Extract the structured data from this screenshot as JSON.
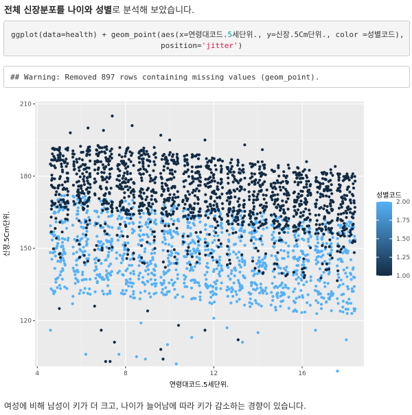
{
  "intro": {
    "prefix": "전체 신장분포를 나이와 성별",
    "suffix": "로 분석해 보았습니다."
  },
  "code": {
    "line1_a": "ggplot(data=health) + geom_point(aes(x=연령대코드.",
    "line1_num": "5",
    "line1_b": "세단위., y=신장.5Cm단위., color =성별코드),",
    "line2_a": "position=",
    "line2_str": "'jitter'",
    "line2_b": ")"
  },
  "output": {
    "warning": "## Warning: Removed 897 rows containing missing values (geom_point)."
  },
  "chart_data": {
    "type": "scatter",
    "position": "jitter",
    "xlabel": "연령대코드.5세단위.",
    "ylabel": "신장.5Cm단위.",
    "xticks": [
      4,
      8,
      12,
      16
    ],
    "yticks": [
      120,
      150,
      180,
      210
    ],
    "xlim": [
      3.9,
      18.8
    ],
    "ylim": [
      101,
      211
    ],
    "grid": true,
    "legend": {
      "title": "성별코드",
      "position": "right",
      "ticks": [
        2.0,
        1.75,
        1.5,
        1.25,
        1.0
      ],
      "tick_labels": [
        "2.00",
        "1.75",
        "1.50",
        "1.25",
        "1.00"
      ],
      "low_color": "#132B43",
      "high_color": "#56B1F7"
    },
    "groups": [
      {
        "age": 5,
        "male": [
          170,
          188
        ],
        "female": [
          143,
          170
        ]
      },
      {
        "age": 6,
        "male": [
          170,
          189
        ],
        "female": [
          142,
          170
        ]
      },
      {
        "age": 7,
        "male": [
          169,
          189
        ],
        "female": [
          142,
          169
        ]
      },
      {
        "age": 8,
        "male": [
          168,
          188
        ],
        "female": [
          141,
          168
        ]
      },
      {
        "age": 9,
        "male": [
          168,
          188
        ],
        "female": [
          141,
          168
        ]
      },
      {
        "age": 10,
        "male": [
          167,
          186
        ],
        "female": [
          140,
          167
        ]
      },
      {
        "age": 11,
        "male": [
          166,
          185
        ],
        "female": [
          140,
          166
        ]
      },
      {
        "age": 12,
        "male": [
          165,
          184
        ],
        "female": [
          139,
          165
        ]
      },
      {
        "age": 13,
        "male": [
          164,
          183
        ],
        "female": [
          138,
          164
        ]
      },
      {
        "age": 14,
        "male": [
          163,
          182
        ],
        "female": [
          137,
          163
        ]
      },
      {
        "age": 15,
        "male": [
          162,
          181
        ],
        "female": [
          136,
          162
        ]
      },
      {
        "age": 16,
        "male": [
          161,
          180
        ],
        "female": [
          135,
          161
        ]
      },
      {
        "age": 17,
        "male": [
          160,
          179
        ],
        "female": [
          134,
          160
        ]
      },
      {
        "age": 18,
        "male": [
          159,
          177
        ],
        "female": [
          133,
          159
        ]
      }
    ],
    "outliers": [
      {
        "x": 4.6,
        "y": 116,
        "g": 2
      },
      {
        "x": 5.0,
        "y": 125,
        "g": 1
      },
      {
        "x": 5.6,
        "y": 127,
        "g": 2
      },
      {
        "x": 6.2,
        "y": 106,
        "g": 2
      },
      {
        "x": 6.6,
        "y": 126,
        "g": 1
      },
      {
        "x": 6.9,
        "y": 116,
        "g": 1
      },
      {
        "x": 7.1,
        "y": 103,
        "g": 1
      },
      {
        "x": 7.3,
        "y": 103,
        "g": 1
      },
      {
        "x": 7.5,
        "y": 111,
        "g": 1
      },
      {
        "x": 7.7,
        "y": 106,
        "g": 2
      },
      {
        "x": 7.9,
        "y": 131,
        "g": 2
      },
      {
        "x": 8.5,
        "y": 105,
        "g": 2
      },
      {
        "x": 8.7,
        "y": 119,
        "g": 2
      },
      {
        "x": 8.9,
        "y": 104,
        "g": 2
      },
      {
        "x": 9.0,
        "y": 124,
        "g": 1
      },
      {
        "x": 9.6,
        "y": 108,
        "g": 1
      },
      {
        "x": 9.7,
        "y": 104,
        "g": 1
      },
      {
        "x": 9.9,
        "y": 110,
        "g": 2
      },
      {
        "x": 10.3,
        "y": 102,
        "g": 2
      },
      {
        "x": 10.4,
        "y": 118,
        "g": 1
      },
      {
        "x": 11.0,
        "y": 113,
        "g": 2
      },
      {
        "x": 11.6,
        "y": 116,
        "g": 1
      },
      {
        "x": 12.0,
        "y": 121,
        "g": 2
      },
      {
        "x": 12.6,
        "y": 117,
        "g": 2
      },
      {
        "x": 13.3,
        "y": 111,
        "g": 2
      },
      {
        "x": 14.0,
        "y": 115,
        "g": 2
      },
      {
        "x": 13.1,
        "y": 112,
        "g": 1
      },
      {
        "x": 17.6,
        "y": 99,
        "g": 2
      },
      {
        "x": 18.0,
        "y": 112,
        "g": 2
      },
      {
        "x": 16.6,
        "y": 116,
        "g": 2
      },
      {
        "x": 7.4,
        "y": 205,
        "g": 1
      },
      {
        "x": 8.3,
        "y": 201,
        "g": 1
      },
      {
        "x": 6.3,
        "y": 200,
        "g": 1
      },
      {
        "x": 5.5,
        "y": 198,
        "g": 1
      },
      {
        "x": 7.0,
        "y": 199,
        "g": 1
      },
      {
        "x": 9.6,
        "y": 197,
        "g": 1
      },
      {
        "x": 10.0,
        "y": 195,
        "g": 1
      },
      {
        "x": 11.6,
        "y": 195,
        "g": 1
      },
      {
        "x": 13.4,
        "y": 193,
        "g": 1
      },
      {
        "x": 14.2,
        "y": 191,
        "g": 1
      },
      {
        "x": 16.2,
        "y": 186,
        "g": 1
      },
      {
        "x": 17.5,
        "y": 184,
        "g": 1
      },
      {
        "x": 18.3,
        "y": 181,
        "g": 1
      }
    ]
  },
  "caption": "여성에 비해 남성이 키가 더 크고, 나이가 늘어남에 따라 키가 감소하는 경향이 있습니다."
}
